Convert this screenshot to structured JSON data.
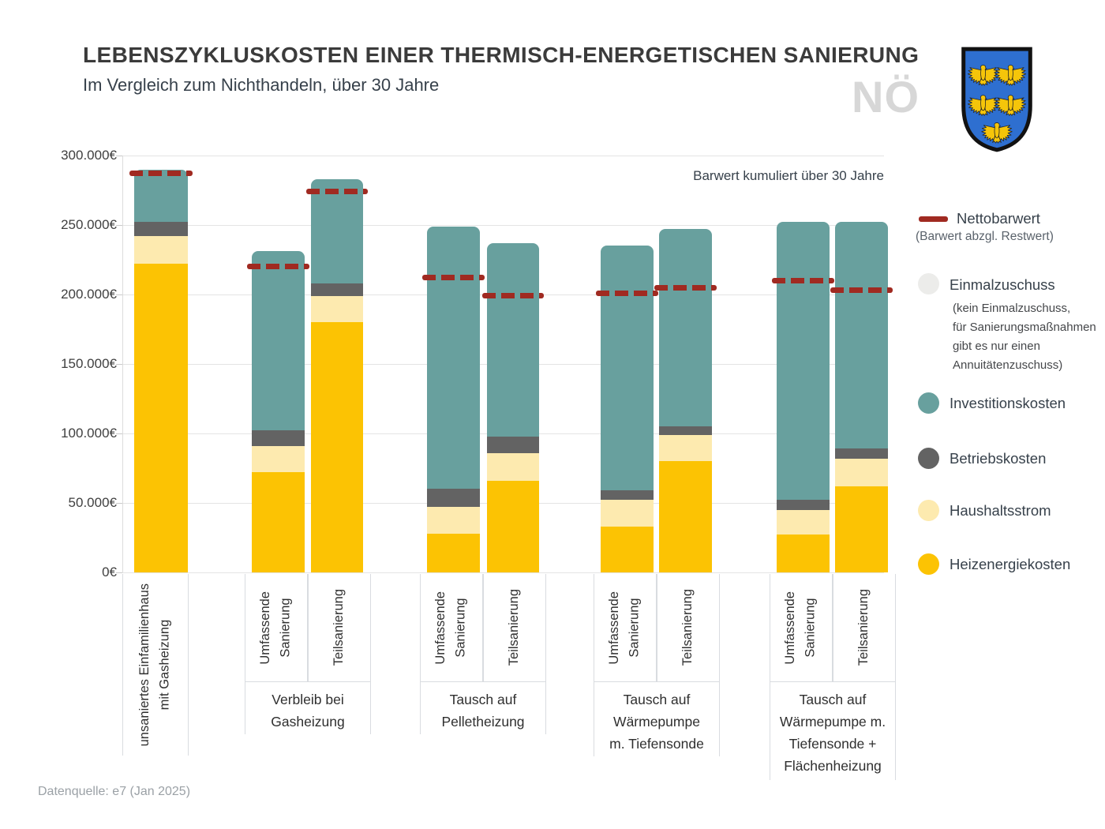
{
  "header": {
    "title": "LEBENSZYKLUSKOSTEN EINER THERMISCH-ENERGETISCHEN SANIERUNG",
    "subtitle": "Im Vergleich zum Nichthandeln, über 30 Jahre",
    "watermark": "NÖ"
  },
  "plot": {
    "annotation": "Barwert kumuliert über 30 Jahre"
  },
  "legend": {
    "nettobarwert_label": "Nettobarwert",
    "nettobarwert_sublabel": "(Barwert abzgl. Restwert)",
    "einmalzuschuss_label": "Einmalzuschuss",
    "einmalzuschuss_note_lines": [
      "(kein Einmalzuschuss,",
      "für Sanierungsmaßnahmen",
      "gibt es nur einen",
      "Annuitätenzuschuss)"
    ],
    "items": [
      {
        "key": "investitionskosten",
        "label": "Investitionskosten"
      },
      {
        "key": "betriebskosten",
        "label": "Betriebskosten"
      },
      {
        "key": "haushaltsstrom",
        "label": "Haushaltsstrom"
      },
      {
        "key": "heizenergiekosten",
        "label": "Heizenergiekosten"
      }
    ]
  },
  "footer": {
    "source": "Datenquelle: e7 (Jan 2025)"
  },
  "chart_data": {
    "type": "bar",
    "stacked": true,
    "title": "Lebenszykluskosten einer thermisch-energetischen Sanierung",
    "subtitle": "Im Vergleich zum Nichthandeln, über 30 Jahre",
    "unit": "EUR",
    "ylim": [
      0,
      300000
    ],
    "ytick_step": 50000,
    "ytick_labels": [
      "300.000€",
      "250.000€",
      "200.000€",
      "150.000€",
      "100.000€",
      "50.000€",
      "0€"
    ],
    "grid": true,
    "legend_position": "right",
    "series_stack_order_bottom_to_top": [
      "heizenergiekosten",
      "haushaltsstrom",
      "betriebskosten",
      "investitionskosten"
    ],
    "colors": {
      "heizenergiekosten": "#fcc303",
      "haushaltsstrom": "#fdeaaf",
      "betriebskosten": "#636363",
      "investitionskosten": "#68a09e",
      "nettobarwert": "#a02a21",
      "einmalzuschuss": "#ececea",
      "shield_blue": "#2e6fd0",
      "shield_gold": "#f5c50a"
    },
    "group_labels": [
      [],
      [
        "Verbleib bei",
        "Gasheizung"
      ],
      [
        "Tausch auf",
        "Pelletheizung"
      ],
      [
        "Tausch auf",
        "Wärmepumpe",
        "m. Tiefensonde"
      ],
      [
        "Tausch auf",
        "Wärmepumpe m.",
        "Tiefensonde +",
        "Flächenheizung"
      ]
    ],
    "bars": [
      {
        "group": 0,
        "label_lines": [
          "unsaniertes Einfamilienhaus",
          "mit Gasheizung"
        ],
        "values": {
          "heizenergiekosten": 222000,
          "haushaltsstrom": 20000,
          "betriebskosten": 10000,
          "investitionskosten": 38000
        },
        "total": 290000,
        "nettobarwert": 287000
      },
      {
        "group": 1,
        "label_lines": [
          "Umfassende",
          "Sanierung"
        ],
        "values": {
          "heizenergiekosten": 72000,
          "haushaltsstrom": 19000,
          "betriebskosten": 11000,
          "investitionskosten": 129000
        },
        "total": 231000,
        "nettobarwert": 220000
      },
      {
        "group": 1,
        "label_lines": [
          "Teilsanierung"
        ],
        "values": {
          "heizenergiekosten": 180000,
          "haushaltsstrom": 19000,
          "betriebskosten": 9000,
          "investitionskosten": 75000
        },
        "total": 283000,
        "nettobarwert": 274000
      },
      {
        "group": 2,
        "label_lines": [
          "Umfassende",
          "Sanierung"
        ],
        "values": {
          "heizenergiekosten": 28000,
          "haushaltsstrom": 19000,
          "betriebskosten": 13000,
          "investitionskosten": 189000
        },
        "total": 249000,
        "nettobarwert": 212000
      },
      {
        "group": 2,
        "label_lines": [
          "Teilsanierung"
        ],
        "values": {
          "heizenergiekosten": 66000,
          "haushaltsstrom": 20000,
          "betriebskosten": 12000,
          "investitionskosten": 139000
        },
        "total": 237000,
        "nettobarwert": 199000
      },
      {
        "group": 3,
        "label_lines": [
          "Umfassende",
          "Sanierung"
        ],
        "values": {
          "heizenergiekosten": 33000,
          "haushaltsstrom": 19000,
          "betriebskosten": 7000,
          "investitionskosten": 176000
        },
        "total": 235000,
        "nettobarwert": 201000
      },
      {
        "group": 3,
        "label_lines": [
          "Teilsanierung"
        ],
        "values": {
          "heizenergiekosten": 80000,
          "haushaltsstrom": 19000,
          "betriebskosten": 6000,
          "investitionskosten": 142000
        },
        "total": 247000,
        "nettobarwert": 205000
      },
      {
        "group": 4,
        "label_lines": [
          "Umfassende",
          "Sanierung"
        ],
        "values": {
          "heizenergiekosten": 27000,
          "haushaltsstrom": 18000,
          "betriebskosten": 7000,
          "investitionskosten": 200000
        },
        "total": 252000,
        "nettobarwert": 210000
      },
      {
        "group": 4,
        "label_lines": [
          "Teilsanierung"
        ],
        "values": {
          "heizenergiekosten": 62000,
          "haushaltsstrom": 20000,
          "betriebskosten": 7000,
          "investitionskosten": 163000
        },
        "total": 252000,
        "nettobarwert": 203000
      }
    ]
  }
}
